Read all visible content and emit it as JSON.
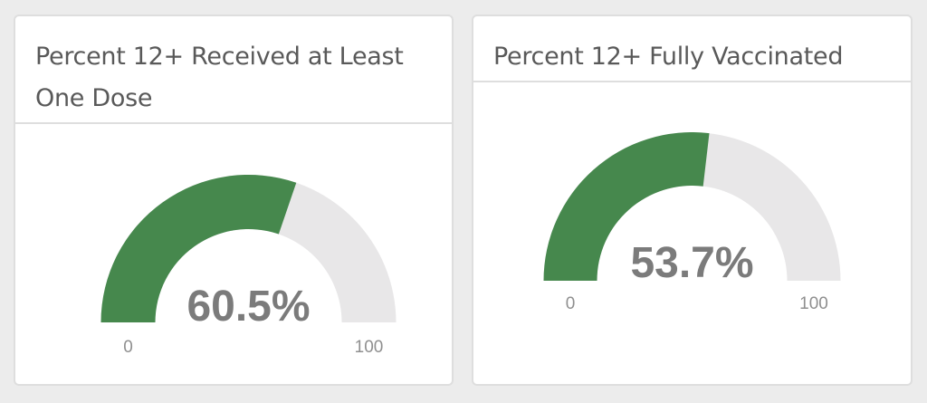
{
  "colors": {
    "fill": "#46884d",
    "track": "#e8e7e8"
  },
  "cards": [
    {
      "title": "Percent 12+ Received at Least One Dose"
    },
    {
      "title": "Percent 12+ Fully Vaccinated"
    }
  ],
  "chart_data": [
    {
      "type": "gauge",
      "title": "Percent 12+ Received at Least One Dose",
      "value": 60.5,
      "value_label": "60.5%",
      "min": 0,
      "max": 100,
      "min_label": "0",
      "max_label": "100"
    },
    {
      "type": "gauge",
      "title": "Percent 12+ Fully Vaccinated",
      "value": 53.7,
      "value_label": "53.7%",
      "min": 0,
      "max": 100,
      "min_label": "0",
      "max_label": "100"
    }
  ]
}
